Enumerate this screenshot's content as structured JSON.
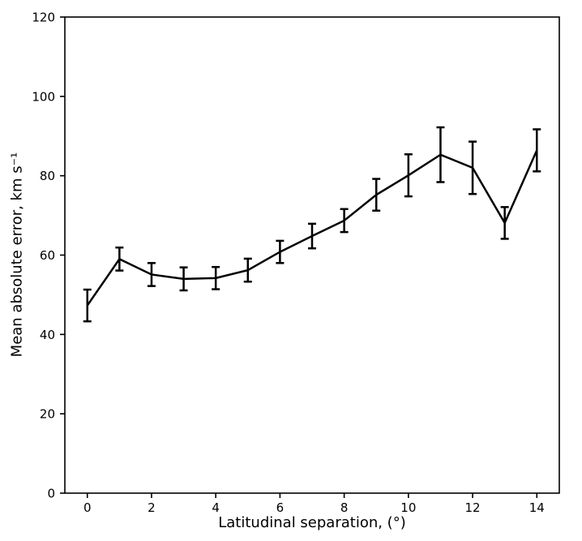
{
  "figure": {
    "background_color": "#ffffff",
    "foreground_color": "#000000"
  },
  "chart_data": {
    "type": "line",
    "title": "",
    "xlabel": "Latitudinal separation, (°)",
    "ylabel": "Mean absolute error, km s⁻¹",
    "x": [
      0,
      1,
      2,
      3,
      4,
      5,
      6,
      7,
      8,
      9,
      10,
      11,
      12,
      13,
      14
    ],
    "y": [
      47.3,
      59.0,
      55.1,
      54.0,
      54.2,
      56.2,
      60.8,
      64.8,
      68.7,
      75.2,
      80.1,
      85.3,
      82.0,
      68.1,
      86.4
    ],
    "yerr": [
      4.0,
      2.9,
      2.9,
      2.9,
      2.8,
      2.9,
      2.8,
      3.1,
      2.9,
      4.0,
      5.3,
      6.9,
      6.6,
      4.0,
      5.3
    ],
    "xticks": [
      0,
      2,
      4,
      6,
      8,
      10,
      12,
      14
    ],
    "yticks": [
      0,
      20,
      40,
      60,
      80,
      100,
      120
    ],
    "xlim": [
      -0.7,
      14.7
    ],
    "ylim": [
      0,
      120
    ],
    "grid": false,
    "legend": null,
    "line_color": "#000000",
    "errorbar_color": "#000000",
    "marker": "none",
    "errorbar_capsize": 5
  }
}
